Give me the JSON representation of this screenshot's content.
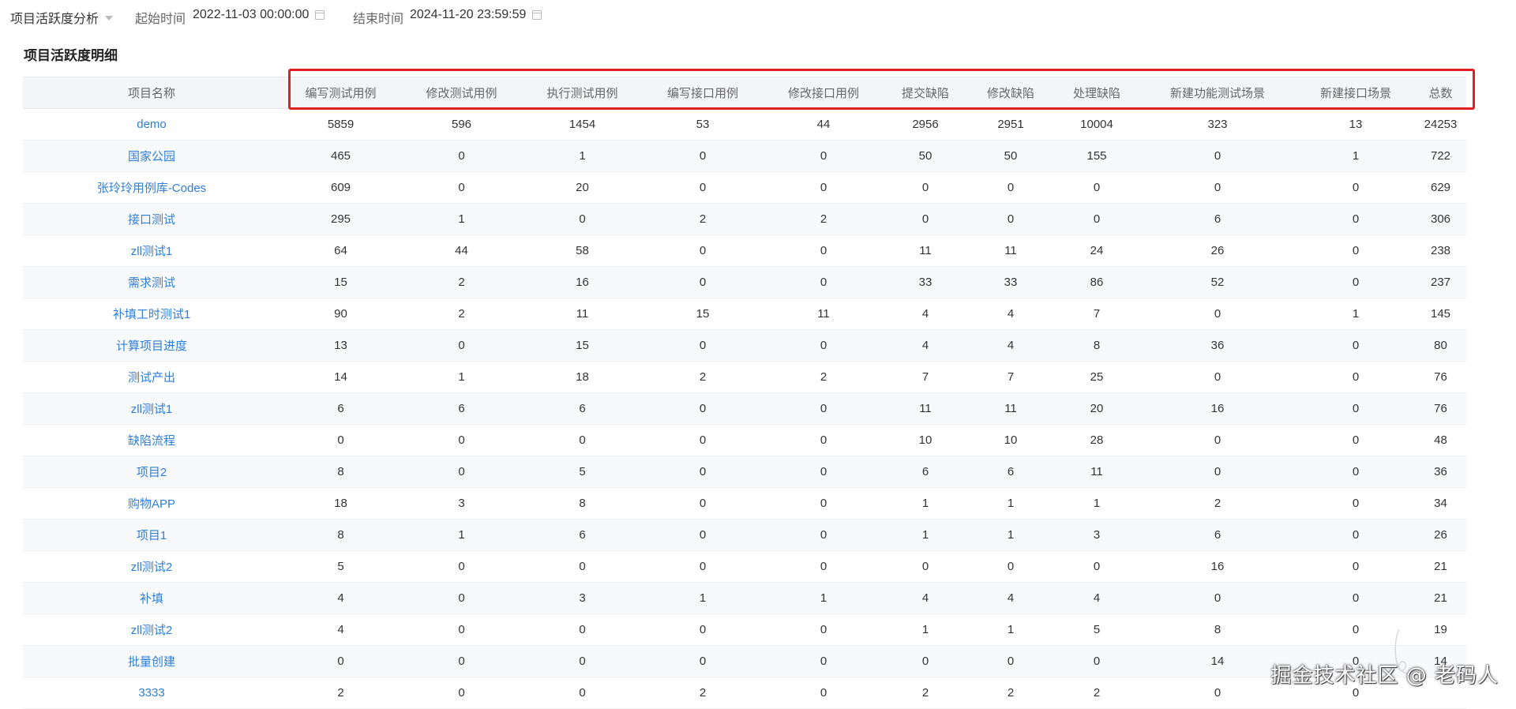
{
  "filters": {
    "analysis_select": "项目活跃度分析",
    "start_label": "起始时间",
    "start_value": "2022-11-03 00:00:00",
    "end_label": "结束时间",
    "end_value": "2024-11-20 23:59:59"
  },
  "section": {
    "title": "项目活跃度明细"
  },
  "table": {
    "headers": [
      "项目名称",
      "编写测试用例",
      "修改测试用例",
      "执行测试用例",
      "编写接口用例",
      "修改接口用例",
      "提交缺陷",
      "修改缺陷",
      "处理缺陷",
      "新建功能测试场景",
      "新建接口场景",
      "总数"
    ],
    "rows": [
      [
        "demo",
        "5859",
        "596",
        "1454",
        "53",
        "44",
        "2956",
        "2951",
        "10004",
        "323",
        "13",
        "24253"
      ],
      [
        "国家公园",
        "465",
        "0",
        "1",
        "0",
        "0",
        "50",
        "50",
        "155",
        "0",
        "1",
        "722"
      ],
      [
        "张玲玲用例库-Codes",
        "609",
        "0",
        "20",
        "0",
        "0",
        "0",
        "0",
        "0",
        "0",
        "0",
        "629"
      ],
      [
        "接口测试",
        "295",
        "1",
        "0",
        "2",
        "2",
        "0",
        "0",
        "0",
        "6",
        "0",
        "306"
      ],
      [
        "zll测试1",
        "64",
        "44",
        "58",
        "0",
        "0",
        "11",
        "11",
        "24",
        "26",
        "0",
        "238"
      ],
      [
        "需求测试",
        "15",
        "2",
        "16",
        "0",
        "0",
        "33",
        "33",
        "86",
        "52",
        "0",
        "237"
      ],
      [
        "补填工时测试1",
        "90",
        "2",
        "11",
        "15",
        "11",
        "4",
        "4",
        "7",
        "0",
        "1",
        "145"
      ],
      [
        "计算项目进度",
        "13",
        "0",
        "15",
        "0",
        "0",
        "4",
        "4",
        "8",
        "36",
        "0",
        "80"
      ],
      [
        "测试产出",
        "14",
        "1",
        "18",
        "2",
        "2",
        "7",
        "7",
        "25",
        "0",
        "0",
        "76"
      ],
      [
        "zll测试1",
        "6",
        "6",
        "6",
        "0",
        "0",
        "11",
        "11",
        "20",
        "16",
        "0",
        "76"
      ],
      [
        "缺陷流程",
        "0",
        "0",
        "0",
        "0",
        "0",
        "10",
        "10",
        "28",
        "0",
        "0",
        "48"
      ],
      [
        "项目2",
        "8",
        "0",
        "5",
        "0",
        "0",
        "6",
        "6",
        "11",
        "0",
        "0",
        "36"
      ],
      [
        "购物APP",
        "18",
        "3",
        "8",
        "0",
        "0",
        "1",
        "1",
        "1",
        "2",
        "0",
        "34"
      ],
      [
        "项目1",
        "8",
        "1",
        "6",
        "0",
        "0",
        "1",
        "1",
        "3",
        "6",
        "0",
        "26"
      ],
      [
        "zll测试2",
        "5",
        "0",
        "0",
        "0",
        "0",
        "0",
        "0",
        "0",
        "16",
        "0",
        "21"
      ],
      [
        "补填",
        "4",
        "0",
        "3",
        "1",
        "1",
        "4",
        "4",
        "4",
        "0",
        "0",
        "21"
      ],
      [
        "zll测试2",
        "4",
        "0",
        "0",
        "0",
        "0",
        "1",
        "1",
        "5",
        "8",
        "0",
        "19"
      ],
      [
        "批量创建",
        "0",
        "0",
        "0",
        "0",
        "0",
        "0",
        "0",
        "0",
        "14",
        "0",
        "14"
      ],
      [
        "3333",
        "2",
        "0",
        "0",
        "2",
        "0",
        "2",
        "2",
        "2",
        "0",
        "0",
        ""
      ]
    ]
  },
  "watermark": "掘金技术社区 @ 老码人",
  "colors": {
    "link": "#2f7fd8",
    "highlight": "#e02020",
    "header_bg": "#f4f5f7"
  }
}
